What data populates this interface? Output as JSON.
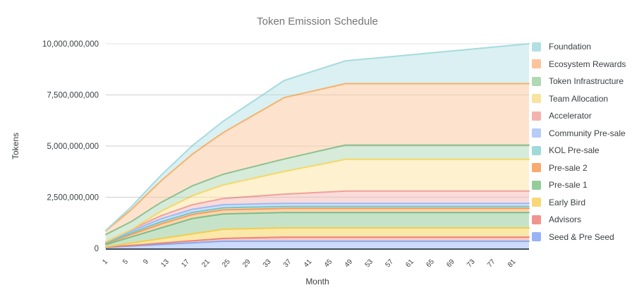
{
  "title": "Token Emission Schedule",
  "y_axis_title": "Tokens",
  "x_axis_title": "Month",
  "chart_data": {
    "type": "area",
    "stacked": true,
    "title": "Token Emission Schedule",
    "xlabel": "Month",
    "ylabel": "Tokens",
    "x_range": [
      1,
      84
    ],
    "y_range_millions": [
      0,
      10000
    ],
    "grid": true,
    "legend_position": "right",
    "x_ticks": [
      1,
      5,
      9,
      13,
      17,
      21,
      25,
      29,
      33,
      37,
      41,
      45,
      49,
      53,
      57,
      61,
      65,
      69,
      73,
      77,
      81
    ],
    "y_ticks": [
      {
        "value_millions": 0,
        "label": "0"
      },
      {
        "value_millions": 2500,
        "label": "2,500,000,000"
      },
      {
        "value_millions": 5000,
        "label": "5,000,000,000"
      },
      {
        "value_millions": 7500,
        "label": "7,500,000,000"
      },
      {
        "value_millions": 10000,
        "label": "10,000,000,000"
      }
    ],
    "values_unit": "millions_of_tokens",
    "stack_order": "bottom_to_top",
    "legend_order": "top_of_stack_first",
    "months": [
      1,
      2,
      4,
      6,
      8,
      10,
      12,
      15,
      18,
      21,
      24,
      28,
      32,
      36,
      40,
      44,
      48,
      54,
      60,
      66,
      72,
      78,
      84
    ],
    "series": [
      {
        "name": "seed-pre-seed",
        "label": "Seed & Pre Seed",
        "fill": "#c7d7fa",
        "stroke": "#85a8f0",
        "swatch": "#97b3f6",
        "values_millions": [
          48,
          61,
          88,
          114,
          140,
          166,
          193,
          232,
          271,
          311,
          350,
          350,
          350,
          350,
          350,
          350,
          350,
          350,
          350,
          350,
          350,
          350,
          350
        ]
      },
      {
        "name": "advisors",
        "label": "Advisors",
        "fill": "#f8c3bf",
        "stroke": "#ec837b",
        "swatch": "#f0958e",
        "values_millions": [
          6,
          11,
          22,
          33,
          44,
          56,
          67,
          83,
          100,
          117,
          133,
          156,
          178,
          200,
          200,
          200,
          200,
          200,
          200,
          200,
          200,
          200,
          200
        ]
      },
      {
        "name": "early-bird",
        "label": "Early Bird",
        "fill": "#fbe6a2",
        "stroke": "#f3cc4e",
        "swatch": "#f8d876",
        "values_millions": [
          19,
          38,
          75,
          113,
          150,
          188,
          225,
          281,
          338,
          394,
          450,
          450,
          450,
          450,
          450,
          450,
          450,
          450,
          450,
          450,
          450,
          450,
          450
        ]
      },
      {
        "name": "pre-sale-1",
        "label": "Pre-sale 1",
        "fill": "#c1e1c4",
        "stroke": "#7cbd85",
        "swatch": "#94cc9a",
        "values_millions": [
          113,
          150,
          225,
          300,
          375,
          450,
          525,
          638,
          750,
          750,
          750,
          750,
          750,
          750,
          750,
          750,
          750,
          750,
          750,
          750,
          750,
          750,
          750
        ]
      },
      {
        "name": "pre-sale-2",
        "label": "Pre-sale 2",
        "fill": "#fdd0a6",
        "stroke": "#f59d56",
        "swatch": "#faa96f",
        "values_millions": [
          53,
          67,
          93,
          120,
          147,
          173,
          200,
          200,
          200,
          200,
          200,
          200,
          200,
          200,
          200,
          200,
          200,
          200,
          200,
          200,
          200,
          200,
          200
        ]
      },
      {
        "name": "kol-pre-sale",
        "label": "KOL Pre-sale",
        "fill": "#c1e5e4",
        "stroke": "#76c5c6",
        "swatch": "#9edad8",
        "values_millions": [
          28,
          36,
          52,
          68,
          84,
          100,
          100,
          100,
          100,
          100,
          100,
          100,
          100,
          100,
          100,
          100,
          100,
          100,
          100,
          100,
          100,
          100,
          100
        ]
      },
      {
        "name": "community-pre-sale",
        "label": "Community Pre-sale",
        "fill": "#cdddfa",
        "stroke": "#9bb9f5",
        "swatch": "#b6cbf8",
        "values_millions": [
          40,
          50,
          70,
          90,
          110,
          130,
          150,
          150,
          150,
          150,
          150,
          150,
          150,
          150,
          150,
          150,
          150,
          150,
          150,
          150,
          150,
          150,
          150
        ]
      },
      {
        "name": "accelerator",
        "label": "Accelerator",
        "fill": "#f9d8d6",
        "stroke": "#f0a19c",
        "swatch": "#f5b3af",
        "values_millions": [
          13,
          25,
          50,
          75,
          100,
          125,
          150,
          188,
          225,
          263,
          300,
          350,
          400,
          450,
          500,
          550,
          600,
          600,
          600,
          600,
          600,
          600,
          600
        ]
      },
      {
        "name": "team-allocation",
        "label": "Team Allocation",
        "fill": "#fdf0cb",
        "stroke": "#f5d866",
        "swatch": "#f8e3a1",
        "values_millions": [
          0,
          0,
          0,
          0,
          74,
          148,
          221,
          332,
          443,
          554,
          664,
          812,
          959,
          1107,
          1255,
          1402,
          1550,
          1550,
          1550,
          1550,
          1550,
          1550,
          1550
        ]
      },
      {
        "name": "token-infrastructure",
        "label": "Token Infrastructure",
        "fill": "#d3e9d6",
        "stroke": "#8fc08f",
        "swatch": "#b0d8b4",
        "values_millions": [
          357,
          365,
          379,
          394,
          408,
          423,
          438,
          459,
          481,
          503,
          525,
          554,
          583,
          613,
          642,
          671,
          700,
          700,
          700,
          700,
          700,
          700,
          700
        ]
      },
      {
        "name": "ecosystem-rewards",
        "label": "Ecosystem Rewards",
        "fill": "#fde1c9",
        "stroke": "#f6b26b",
        "swatch": "#fbc49c",
        "values_millions": [
          181,
          261,
          422,
          583,
          744,
          906,
          1067,
          1308,
          1550,
          1792,
          2033,
          2356,
          2678,
          3000,
          3000,
          3000,
          3000,
          3000,
          3000,
          3000,
          3000,
          3000,
          3000
        ]
      },
      {
        "name": "foundation",
        "label": "Foundation",
        "fill": "#d7eff1",
        "stroke": "#a6dbde",
        "swatch": "#b2e0e3",
        "values_millions": [
          23,
          46,
          93,
          139,
          186,
          232,
          279,
          348,
          418,
          488,
          557,
          650,
          743,
          836,
          929,
          1021,
          1114,
          1254,
          1393,
          1532,
          1671,
          1811,
          1950
        ]
      }
    ]
  }
}
